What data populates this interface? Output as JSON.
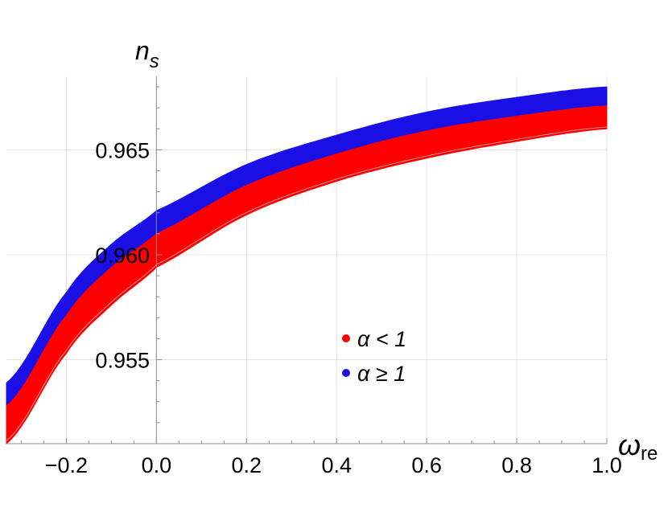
{
  "chart_data": {
    "type": "area",
    "x_axis": {
      "label": "ω",
      "label_subscript": "re",
      "range": [
        -0.333,
        1.0
      ],
      "ticks": [
        -0.2,
        0.0,
        0.2,
        0.4,
        0.6,
        0.8,
        1.0
      ],
      "tick_labels": [
        "−0.2",
        "0.0",
        "0.2",
        "0.4",
        "0.6",
        "0.8",
        "1.0"
      ]
    },
    "y_axis": {
      "label": "n",
      "label_subscript": "s",
      "range": [
        0.951,
        0.9685
      ],
      "ticks": [
        0.955,
        0.96,
        0.965
      ],
      "tick_labels": [
        "0.955",
        "0.960",
        "0.965"
      ]
    },
    "grid": true,
    "legend_position": "center-right",
    "series": [
      {
        "name": "α < 1",
        "color": "#ff0000",
        "x": [
          -0.333,
          -0.2,
          -0.1,
          0.0,
          0.2,
          0.4,
          0.6,
          0.8,
          1.0
        ],
        "lower": [
          0.951,
          0.9553,
          0.9576,
          0.9594,
          0.9619,
          0.9635,
          0.9646,
          0.9654,
          0.966
        ],
        "upper": [
          0.9528,
          0.9571,
          0.9594,
          0.961,
          0.9633,
          0.9648,
          0.9659,
          0.9666,
          0.9671
        ]
      },
      {
        "name": "α ≥ 1",
        "color": "#1a10e6",
        "x": [
          -0.333,
          -0.2,
          -0.1,
          0.0,
          0.2,
          0.4,
          0.6,
          0.8,
          1.0
        ],
        "lower": [
          0.9523,
          0.9565,
          0.9588,
          0.9605,
          0.9629,
          0.9644,
          0.9655,
          0.9663,
          0.9669
        ],
        "upper": [
          0.9539,
          0.9582,
          0.9605,
          0.9621,
          0.9643,
          0.9657,
          0.9668,
          0.9675,
          0.968
        ]
      }
    ]
  }
}
